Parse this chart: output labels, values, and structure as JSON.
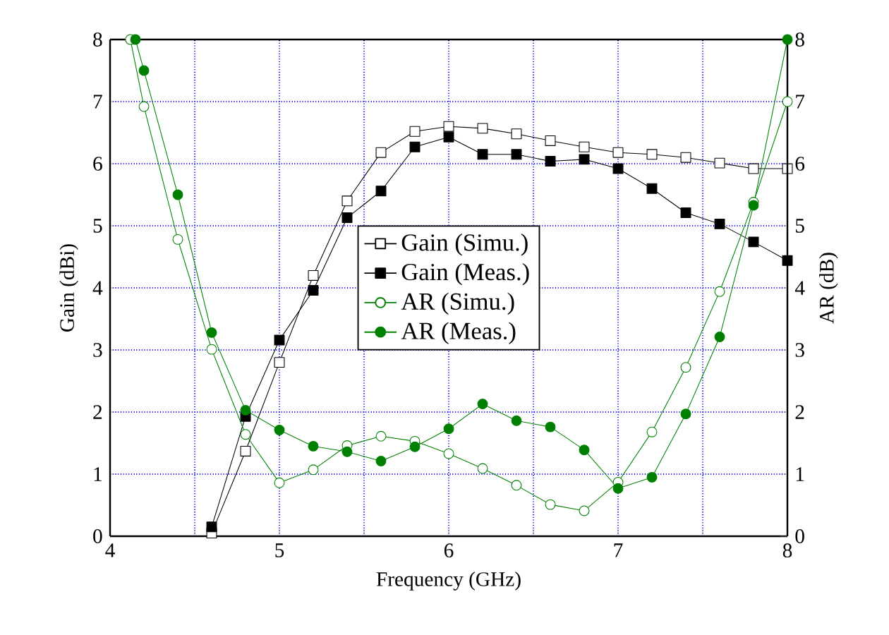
{
  "chart_data": {
    "type": "line",
    "xlabel": "Frequency (GHz)",
    "ylabel": "Gain (dBi)",
    "y2label": "AR (dB)",
    "xlim": [
      4,
      8
    ],
    "xticks": [
      4,
      {
        "value": 4.5,
        "label": null
      },
      5,
      {
        "value": 5.5,
        "label": null
      },
      6,
      {
        "value": 6.5,
        "label": null
      },
      7,
      {
        "value": 7.5,
        "label": null
      },
      8
    ],
    "ylim": [
      0,
      8
    ],
    "yticks": [
      0,
      1,
      2,
      3,
      4,
      5,
      6,
      7,
      8
    ],
    "y2lim": [
      0,
      8
    ],
    "y2ticks": [
      0,
      1,
      2,
      3,
      4,
      5,
      6,
      7,
      8
    ],
    "grid": true,
    "legend": "center",
    "line_style": "solid",
    "series": [
      {
        "name": "Gain (Simu.)",
        "color": "#000000",
        "marker": "square",
        "x": [
          4.6,
          4.8,
          5.0,
          5.2,
          5.4,
          5.6,
          5.8,
          6.0,
          6.2,
          6.4,
          6.6,
          6.8,
          7.0,
          7.2,
          7.4,
          7.6,
          7.8,
          8.0
        ],
        "values": [
          0.05,
          1.37,
          2.8,
          4.2,
          5.4,
          6.18,
          6.52,
          6.6,
          6.57,
          6.48,
          6.37,
          6.27,
          6.18,
          6.15,
          6.1,
          6.01,
          5.92,
          5.92
        ]
      },
      {
        "name": "Gain (Meas.)",
        "color": "#000000",
        "marker": "square",
        "x": [
          4.6,
          4.8,
          5.0,
          5.2,
          5.4,
          5.6,
          5.8,
          6.0,
          6.2,
          6.4,
          6.6,
          6.8,
          7.0,
          7.2,
          7.4,
          7.6,
          7.8,
          8.0
        ],
        "values": [
          0.15,
          1.93,
          3.16,
          3.96,
          5.13,
          5.56,
          6.27,
          6.43,
          6.15,
          6.15,
          6.04,
          6.07,
          5.92,
          5.6,
          5.21,
          5.03,
          4.74,
          4.44
        ]
      },
      {
        "name": "AR (Simu.)",
        "color": "#008000",
        "marker": "circle",
        "axis": "y2",
        "x": [
          4.12,
          4.2,
          4.4,
          4.6,
          4.8,
          5.0,
          5.2,
          5.4,
          5.6,
          5.8,
          6.0,
          6.2,
          6.4,
          6.6,
          6.8,
          7.0,
          7.2,
          7.4,
          7.6,
          7.8,
          8.0
        ],
        "values": [
          8,
          6.92,
          4.78,
          3.01,
          1.64,
          0.86,
          1.07,
          1.46,
          1.61,
          1.53,
          1.33,
          1.09,
          0.82,
          0.51,
          0.41,
          0.87,
          1.68,
          2.72,
          3.94,
          5.38,
          7.0
        ]
      },
      {
        "name": "AR (Meas.)",
        "color": "#008000",
        "marker": "circle",
        "axis": "y2",
        "x": [
          4.15,
          4.2,
          4.4,
          4.6,
          4.8,
          5.0,
          5.2,
          5.4,
          5.6,
          5.8,
          6.0,
          6.2,
          6.4,
          6.6,
          6.8,
          7.0,
          7.2,
          7.4,
          7.6,
          7.8,
          8.0
        ],
        "values": [
          8,
          7.5,
          5.5,
          3.28,
          2.03,
          1.71,
          1.45,
          1.36,
          1.21,
          1.44,
          1.73,
          2.13,
          1.86,
          1.76,
          1.39,
          0.77,
          0.95,
          1.97,
          3.21,
          5.33,
          8.0
        ]
      }
    ]
  }
}
